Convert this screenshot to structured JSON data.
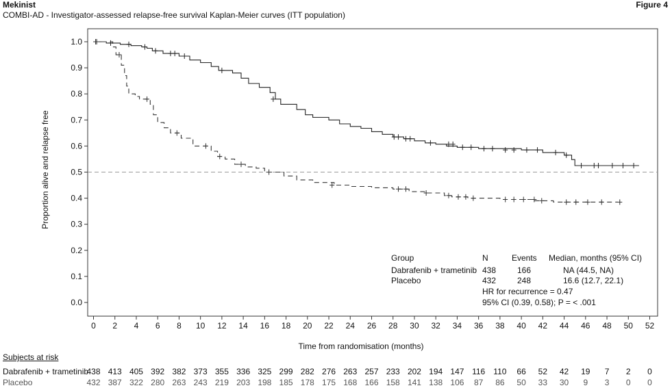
{
  "header": {
    "title": "Mekinist",
    "subtitle": "COMBI-AD - Investigator-assessed relapse-free survival Kaplan-Meier curves (ITT population)",
    "figure": "Figure 4"
  },
  "chart_data": {
    "type": "line",
    "subtype": "kaplan-meier",
    "xlabel": "Time from randomisation (months)",
    "ylabel": "Proportion alive and relapse free",
    "xlim": [
      0,
      52
    ],
    "ylim": [
      0.0,
      1.0
    ],
    "xticks": [
      0,
      2,
      4,
      6,
      8,
      10,
      12,
      14,
      16,
      18,
      20,
      22,
      24,
      26,
      28,
      30,
      32,
      34,
      36,
      38,
      40,
      42,
      44,
      46,
      48,
      50,
      52
    ],
    "yticks": [
      "0.0",
      "0.1",
      "0.2",
      "0.3",
      "0.4",
      "0.5",
      "0.6",
      "0.7",
      "0.8",
      "0.9",
      "1.0"
    ],
    "reference_line": {
      "y": 0.5,
      "style": "dashed"
    },
    "series": [
      {
        "name": "Dabrafenib + trametinib",
        "line": "solid",
        "color": "#222222",
        "steps": [
          [
            0,
            1.0
          ],
          [
            1.2,
            0.995
          ],
          [
            2.5,
            0.99
          ],
          [
            3.5,
            0.985
          ],
          [
            4.5,
            0.98
          ],
          [
            5,
            0.975
          ],
          [
            5.5,
            0.965
          ],
          [
            6.5,
            0.955
          ],
          [
            8,
            0.945
          ],
          [
            9,
            0.93
          ],
          [
            10,
            0.92
          ],
          [
            11,
            0.905
          ],
          [
            11.7,
            0.89
          ],
          [
            13,
            0.88
          ],
          [
            13.8,
            0.86
          ],
          [
            14.5,
            0.84
          ],
          [
            15.5,
            0.825
          ],
          [
            16.5,
            0.805
          ],
          [
            17,
            0.78
          ],
          [
            17.5,
            0.76
          ],
          [
            19,
            0.74
          ],
          [
            19.8,
            0.72
          ],
          [
            20.5,
            0.71
          ],
          [
            22,
            0.7
          ],
          [
            23,
            0.685
          ],
          [
            24,
            0.675
          ],
          [
            25,
            0.668
          ],
          [
            26,
            0.655
          ],
          [
            27,
            0.645
          ],
          [
            28,
            0.635
          ],
          [
            29,
            0.628
          ],
          [
            30,
            0.62
          ],
          [
            31,
            0.612
          ],
          [
            32,
            0.607
          ],
          [
            33,
            0.6
          ],
          [
            34,
            0.595
          ],
          [
            36,
            0.59
          ],
          [
            40,
            0.585
          ],
          [
            42,
            0.575
          ],
          [
            44,
            0.565
          ],
          [
            44.7,
            0.548
          ],
          [
            45,
            0.525
          ],
          [
            51,
            0.525
          ]
        ],
        "censored": [
          [
            0.2,
            1.0
          ],
          [
            1.6,
            0.995
          ],
          [
            3.3,
            0.99
          ],
          [
            4.8,
            0.98
          ],
          [
            5.8,
            0.965
          ],
          [
            7.2,
            0.955
          ],
          [
            7.6,
            0.955
          ],
          [
            8.5,
            0.945
          ],
          [
            12,
            0.89
          ],
          [
            16.8,
            0.78
          ],
          [
            28.1,
            0.635
          ],
          [
            28.5,
            0.635
          ],
          [
            29.2,
            0.628
          ],
          [
            29.6,
            0.628
          ],
          [
            31.5,
            0.612
          ],
          [
            33.2,
            0.607
          ],
          [
            33.6,
            0.607
          ],
          [
            34.5,
            0.595
          ],
          [
            35.3,
            0.595
          ],
          [
            36.5,
            0.59
          ],
          [
            37.3,
            0.59
          ],
          [
            38.5,
            0.585
          ],
          [
            39.3,
            0.585
          ],
          [
            40.5,
            0.585
          ],
          [
            41.5,
            0.585
          ],
          [
            43.2,
            0.575
          ],
          [
            44.2,
            0.565
          ],
          [
            45.6,
            0.525
          ],
          [
            46.8,
            0.525
          ],
          [
            47.2,
            0.525
          ],
          [
            48.5,
            0.525
          ],
          [
            49.5,
            0.525
          ],
          [
            50.5,
            0.525
          ]
        ]
      },
      {
        "name": "Placebo",
        "line": "dashed",
        "color": "#333333",
        "steps": [
          [
            0,
            1.0
          ],
          [
            1.8,
            0.98
          ],
          [
            2.1,
            0.95
          ],
          [
            2.6,
            0.91
          ],
          [
            2.9,
            0.87
          ],
          [
            3.1,
            0.83
          ],
          [
            3.3,
            0.8
          ],
          [
            3.9,
            0.79
          ],
          [
            4.3,
            0.78
          ],
          [
            5.3,
            0.76
          ],
          [
            5.6,
            0.72
          ],
          [
            6,
            0.69
          ],
          [
            6.6,
            0.67
          ],
          [
            7.2,
            0.65
          ],
          [
            8.2,
            0.63
          ],
          [
            9.3,
            0.6
          ],
          [
            11,
            0.58
          ],
          [
            11.6,
            0.56
          ],
          [
            12.3,
            0.55
          ],
          [
            13.2,
            0.53
          ],
          [
            14.2,
            0.52
          ],
          [
            15.2,
            0.515
          ],
          [
            16,
            0.5
          ],
          [
            17.8,
            0.485
          ],
          [
            19,
            0.47
          ],
          [
            20.5,
            0.46
          ],
          [
            22.5,
            0.45
          ],
          [
            24,
            0.445
          ],
          [
            26,
            0.44
          ],
          [
            28,
            0.435
          ],
          [
            29.5,
            0.425
          ],
          [
            31,
            0.42
          ],
          [
            32.8,
            0.41
          ],
          [
            33.5,
            0.405
          ],
          [
            35,
            0.4
          ],
          [
            38,
            0.395
          ],
          [
            41,
            0.39
          ],
          [
            43,
            0.385
          ],
          [
            49,
            0.385
          ]
        ],
        "censored": [
          [
            0.3,
            1.0
          ],
          [
            2.4,
            0.95
          ],
          [
            5,
            0.78
          ],
          [
            7.8,
            0.65
          ],
          [
            10.5,
            0.6
          ],
          [
            11.8,
            0.56
          ],
          [
            13.8,
            0.53
          ],
          [
            16.4,
            0.5
          ],
          [
            22.3,
            0.45
          ],
          [
            28.5,
            0.435
          ],
          [
            29.2,
            0.435
          ],
          [
            31.1,
            0.42
          ],
          [
            33.2,
            0.41
          ],
          [
            34.1,
            0.405
          ],
          [
            34.8,
            0.405
          ],
          [
            35.5,
            0.4
          ],
          [
            38.5,
            0.395
          ],
          [
            39.3,
            0.395
          ],
          [
            40.2,
            0.395
          ],
          [
            41.2,
            0.395
          ],
          [
            41.9,
            0.39
          ],
          [
            44.2,
            0.385
          ],
          [
            45.1,
            0.385
          ],
          [
            46.2,
            0.385
          ],
          [
            47.5,
            0.385
          ],
          [
            49.2,
            0.385
          ]
        ]
      }
    ],
    "legend": {
      "headers": [
        "Group",
        "N",
        "Events",
        "Median, months (95% CI)"
      ],
      "rows": [
        {
          "group": "Dabrafenib + trametinib",
          "n": "438",
          "events": "166",
          "median": "NA (44.5, NA)"
        },
        {
          "group": "Placebo",
          "n": "432",
          "events": "248",
          "median": "16.6 (12.7, 22.1)"
        }
      ],
      "hr_text": "HR for recurrence = 0.47",
      "ci_text": "95% CI (0.39, 0.58); P = < .001"
    }
  },
  "risk_table": {
    "header": "Subjects at risk",
    "rows": [
      {
        "label": "Dabrafenib + trametinib",
        "values": [
          "438",
          "413",
          "405",
          "392",
          "382",
          "373",
          "355",
          "336",
          "325",
          "299",
          "282",
          "276",
          "263",
          "257",
          "233",
          "202",
          "194",
          "147",
          "116",
          "110",
          "66",
          "52",
          "42",
          "19",
          "7",
          "2",
          "0"
        ]
      },
      {
        "label": "Placebo",
        "values": [
          "432",
          "387",
          "322",
          "280",
          "263",
          "243",
          "219",
          "203",
          "198",
          "185",
          "178",
          "175",
          "168",
          "166",
          "158",
          "141",
          "138",
          "106",
          "87",
          "86",
          "50",
          "33",
          "30",
          "9",
          "3",
          "0",
          "0"
        ]
      }
    ]
  }
}
